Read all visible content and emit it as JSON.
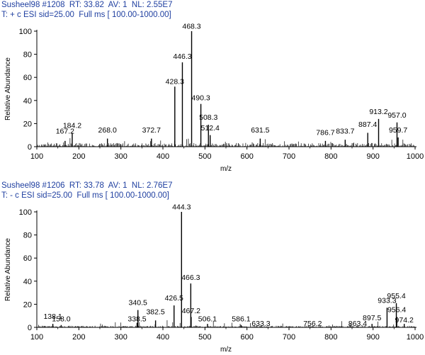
{
  "chart_data": [
    {
      "type": "bar",
      "header": {
        "line1": "Susheel98 #1208  RT: 33.82  AV: 1  NL: 2.55E7",
        "line2": "T: + c ESI sid=25.00  Full ms [ 100.00-1000.00]"
      },
      "xlabel": "m/z",
      "ylabel": "Relative Abundance",
      "xlim": [
        100,
        1000
      ],
      "ylim": [
        0,
        100
      ],
      "xticks": [
        100,
        200,
        300,
        400,
        500,
        600,
        700,
        800,
        900,
        1000
      ],
      "yticks": [
        0,
        20,
        40,
        60,
        80,
        100
      ],
      "peaks": [
        {
          "mz": 167.2,
          "intensity": 5
        },
        {
          "mz": 184.2,
          "intensity": 12
        },
        {
          "mz": 268.0,
          "intensity": 7
        },
        {
          "mz": 372.7,
          "intensity": 7
        },
        {
          "mz": 428.3,
          "intensity": 52
        },
        {
          "mz": 446.3,
          "intensity": 73
        },
        {
          "mz": 468.3,
          "intensity": 100
        },
        {
          "mz": 490.3,
          "intensity": 37
        },
        {
          "mz": 508.3,
          "intensity": 19
        },
        {
          "mz": 512.4,
          "intensity": 10
        },
        {
          "mz": 631.5,
          "intensity": 7
        },
        {
          "mz": 786.7,
          "intensity": 5
        },
        {
          "mz": 833.7,
          "intensity": 6
        },
        {
          "mz": 887.4,
          "intensity": 12
        },
        {
          "mz": 913.2,
          "intensity": 24
        },
        {
          "mz": 957.0,
          "intensity": 21
        },
        {
          "mz": 959.7,
          "intensity": 8
        }
      ],
      "labels": [
        "167.2",
        "184.2",
        "268.0",
        "372.7",
        "428.3",
        "446.3",
        "468.3",
        "490.3",
        "508.3",
        "512.4",
        "631.5",
        "786.7",
        "833.7",
        "887.4",
        "913.2",
        "957.0",
        "959.7"
      ],
      "label_values": [
        10,
        15,
        11,
        11,
        53,
        75,
        101,
        39,
        22,
        13,
        11,
        9,
        10,
        16,
        27,
        24,
        11
      ]
    },
    {
      "type": "bar",
      "header": {
        "line1": "Susheel98 #1206  RT: 33.78  AV: 1  NL: 2.76E7",
        "line2": "T: - c ESI sid=25.00  Full ms [ 100.00-1000.00]"
      },
      "xlabel": "m/z",
      "ylabel": "Relative Abundance",
      "xlim": [
        100,
        1000
      ],
      "ylim": [
        0,
        100
      ],
      "xticks": [
        100,
        200,
        300,
        400,
        500,
        600,
        700,
        800,
        900,
        1000
      ],
      "yticks": [
        0,
        20,
        40,
        60,
        80,
        100
      ],
      "peaks": [
        {
          "mz": 138.1,
          "intensity": 3
        },
        {
          "mz": 158.0,
          "intensity": 2
        },
        {
          "mz": 338.5,
          "intensity": 4
        },
        {
          "mz": 340.5,
          "intensity": 15
        },
        {
          "mz": 382.5,
          "intensity": 6
        },
        {
          "mz": 426.5,
          "intensity": 19
        },
        {
          "mz": 444.3,
          "intensity": 100
        },
        {
          "mz": 466.3,
          "intensity": 38
        },
        {
          "mz": 467.2,
          "intensity": 9
        },
        {
          "mz": 506.1,
          "intensity": 3
        },
        {
          "mz": 586.1,
          "intensity": 2
        },
        {
          "mz": 633.3,
          "intensity": 1
        },
        {
          "mz": 756.2,
          "intensity": 1
        },
        {
          "mz": 863.4,
          "intensity": 1
        },
        {
          "mz": 897.5,
          "intensity": 3
        },
        {
          "mz": 933.3,
          "intensity": 17
        },
        {
          "mz": 955.4,
          "intensity": 21
        },
        {
          "mz": 956.4,
          "intensity": 9
        },
        {
          "mz": 974.2,
          "intensity": 3
        }
      ],
      "labels": [
        "138.1",
        "158.0",
        "338.5",
        "340.5",
        "382.5",
        "426.5",
        "444.3",
        "466.3",
        "467.2",
        "506.1",
        "586.1",
        "633.3",
        "756.2",
        "863.4",
        "897.5",
        "933.3",
        "955.4",
        "956.4",
        "974.2"
      ],
      "label_values": [
        6,
        4,
        4,
        18,
        10,
        22,
        101,
        40,
        11,
        4,
        4,
        0,
        0,
        0,
        5,
        20,
        24,
        12,
        3
      ]
    }
  ]
}
